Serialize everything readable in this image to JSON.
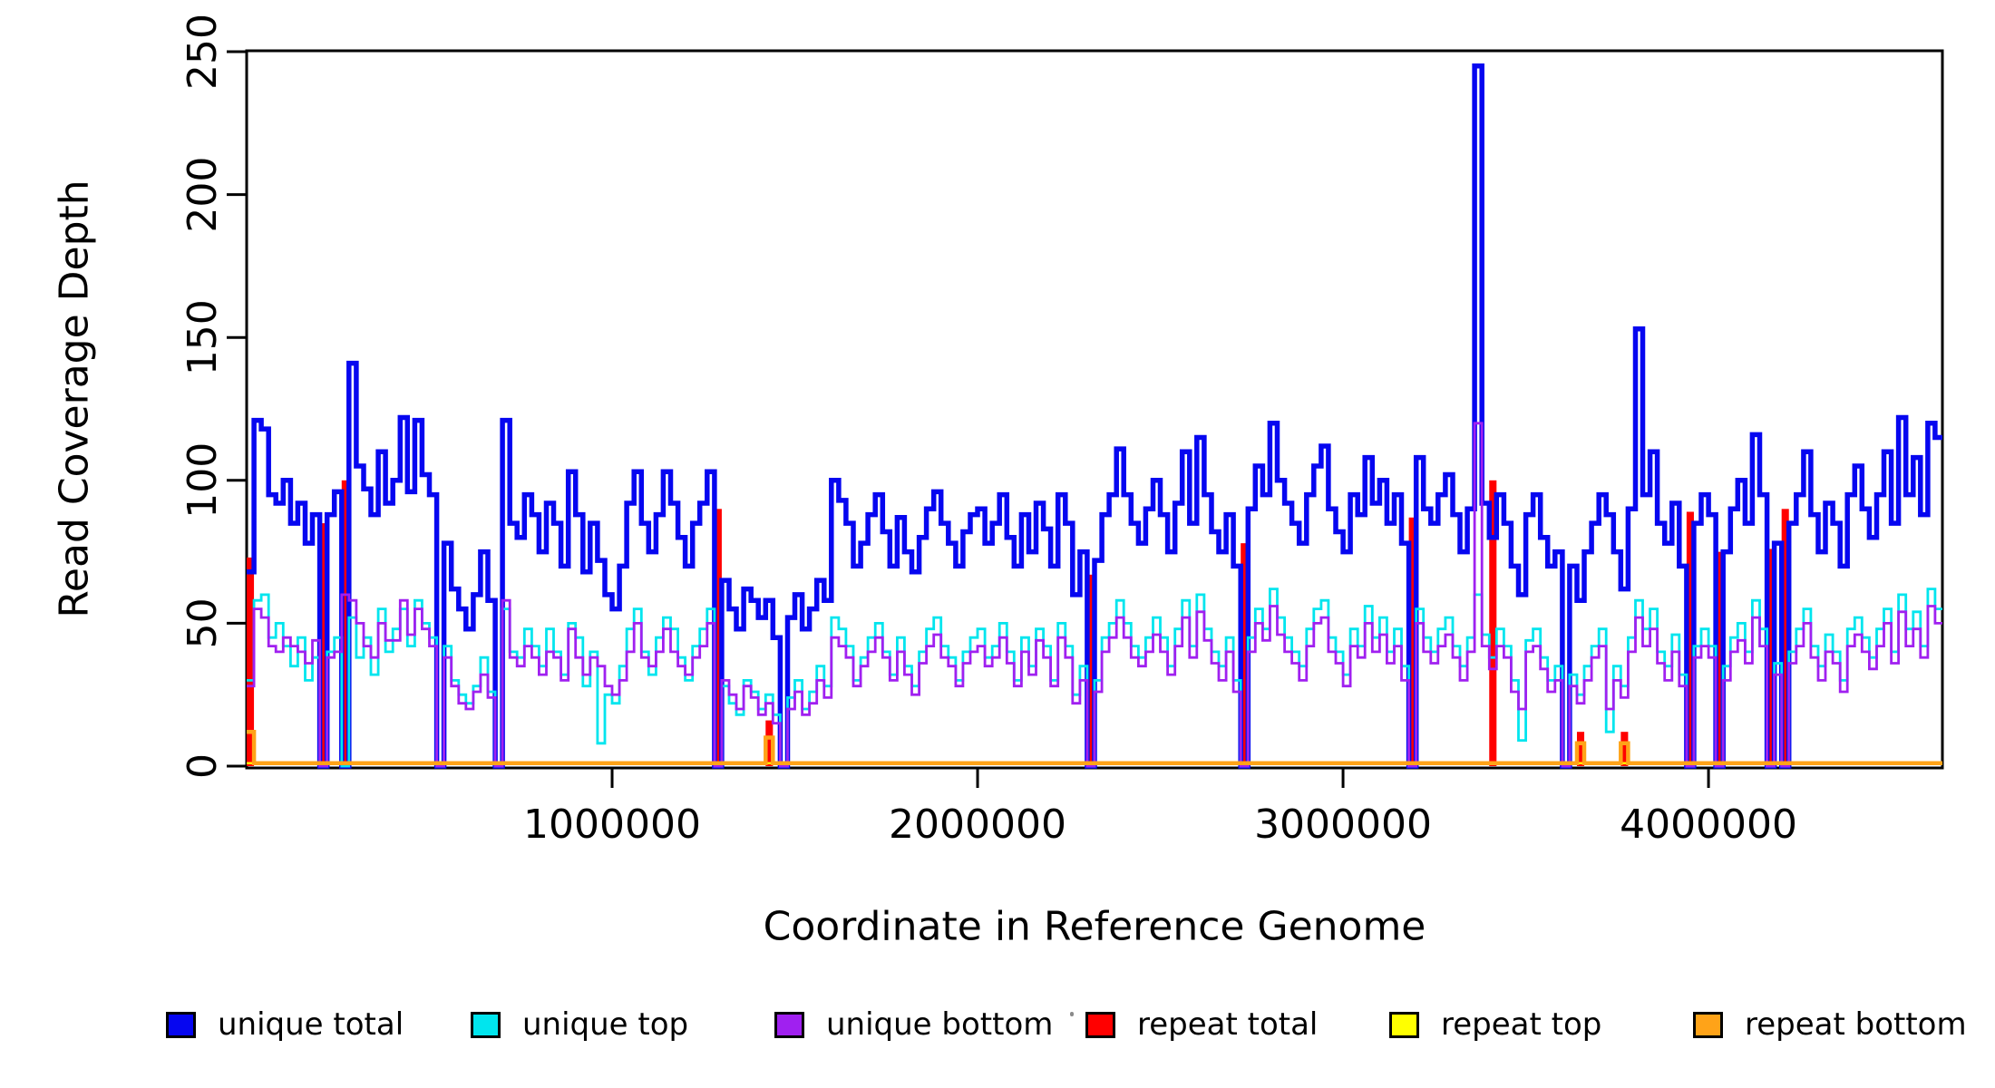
{
  "figure": {
    "background": "#ffffff"
  },
  "chart_data": {
    "type": "line",
    "subtype": "step-coverage-histogram",
    "title": "",
    "xlabel": "Coordinate in Reference Genome",
    "ylabel": "Read Coverage Depth",
    "xlim": [
      0,
      4640000
    ],
    "ylim": [
      0,
      250
    ],
    "xticks": [
      1000000,
      2000000,
      3000000,
      4000000
    ],
    "xtick_labels": [
      "1000000",
      "2000000",
      "3000000",
      "4000000"
    ],
    "yticks": [
      0,
      50,
      100,
      150,
      200,
      250
    ],
    "ytick_labels": [
      "0",
      "50",
      "100",
      "150",
      "200",
      "250"
    ],
    "grid": false,
    "frame_box": true,
    "legend_position": "bottom",
    "bin_size": 20000,
    "n_bins": 232,
    "draw_order": [
      3,
      0,
      1,
      2,
      4,
      5
    ],
    "series": [
      {
        "name": "unique total",
        "color": "#0606F0",
        "style": "step",
        "line_width": 5.5,
        "values": [
          68,
          121,
          118,
          95,
          92,
          100,
          85,
          92,
          78,
          88,
          0,
          88,
          96,
          0,
          141,
          105,
          97,
          88,
          110,
          92,
          100,
          122,
          96,
          121,
          102,
          95,
          0,
          78,
          62,
          55,
          48,
          60,
          75,
          58,
          0,
          121,
          85,
          80,
          95,
          88,
          75,
          92,
          85,
          70,
          103,
          88,
          68,
          85,
          72,
          60,
          55,
          70,
          92,
          103,
          85,
          75,
          88,
          103,
          92,
          80,
          70,
          85,
          92,
          103,
          0,
          65,
          55,
          48,
          62,
          58,
          52,
          58,
          45,
          0,
          52,
          60,
          48,
          55,
          65,
          58,
          100,
          93,
          85,
          70,
          78,
          88,
          95,
          82,
          70,
          87,
          75,
          68,
          80,
          90,
          96,
          85,
          78,
          70,
          82,
          88,
          90,
          78,
          85,
          95,
          80,
          70,
          88,
          75,
          92,
          83,
          70,
          95,
          85,
          60,
          75,
          0,
          72,
          88,
          95,
          111,
          95,
          85,
          78,
          90,
          100,
          88,
          75,
          92,
          110,
          85,
          115,
          95,
          82,
          75,
          88,
          70,
          0,
          90,
          105,
          95,
          120,
          100,
          92,
          85,
          78,
          95,
          105,
          112,
          90,
          82,
          75,
          95,
          88,
          108,
          92,
          100,
          85,
          95,
          78,
          0,
          108,
          90,
          85,
          95,
          102,
          88,
          75,
          90,
          245,
          92,
          80,
          95,
          85,
          70,
          60,
          88,
          95,
          80,
          70,
          75,
          0,
          70,
          58,
          75,
          85,
          95,
          88,
          75,
          62,
          90,
          153,
          95,
          110,
          85,
          78,
          92,
          70,
          0,
          85,
          95,
          88,
          0,
          75,
          90,
          100,
          85,
          116,
          95,
          0,
          78,
          0,
          85,
          95,
          110,
          88,
          75,
          92,
          85,
          70,
          95,
          105,
          90,
          80,
          95,
          110,
          85,
          122,
          95,
          108,
          88,
          120,
          115
        ]
      },
      {
        "name": "unique top",
        "color": "#00E5EE",
        "style": "step",
        "line_width": 2.8,
        "values": [
          30,
          58,
          60,
          45,
          50,
          42,
          35,
          45,
          30,
          38,
          0,
          40,
          45,
          0,
          52,
          38,
          45,
          32,
          55,
          40,
          48,
          55,
          42,
          58,
          50,
          45,
          0,
          42,
          30,
          25,
          22,
          28,
          38,
          26,
          0,
          55,
          40,
          38,
          48,
          42,
          35,
          48,
          40,
          32,
          50,
          45,
          28,
          40,
          8,
          25,
          22,
          35,
          48,
          55,
          40,
          32,
          45,
          52,
          48,
          38,
          30,
          42,
          48,
          55,
          0,
          28,
          22,
          18,
          30,
          26,
          20,
          25,
          18,
          0,
          24,
          30,
          20,
          26,
          35,
          28,
          52,
          48,
          42,
          30,
          38,
          45,
          50,
          40,
          32,
          45,
          35,
          28,
          40,
          48,
          52,
          42,
          38,
          30,
          40,
          45,
          48,
          38,
          42,
          50,
          40,
          30,
          45,
          35,
          48,
          42,
          30,
          50,
          42,
          25,
          35,
          0,
          30,
          45,
          50,
          58,
          50,
          42,
          38,
          45,
          52,
          45,
          35,
          48,
          58,
          42,
          60,
          48,
          40,
          35,
          45,
          30,
          0,
          45,
          55,
          48,
          62,
          52,
          45,
          40,
          35,
          48,
          55,
          58,
          45,
          40,
          32,
          48,
          42,
          56,
          45,
          52,
          40,
          48,
          35,
          0,
          55,
          45,
          40,
          48,
          52,
          42,
          35,
          45,
          60,
          46,
          38,
          48,
          42,
          30,
          9,
          44,
          48,
          38,
          30,
          35,
          0,
          32,
          25,
          35,
          42,
          48,
          12,
          35,
          28,
          45,
          58,
          48,
          55,
          40,
          35,
          46,
          32,
          0,
          42,
          48,
          42,
          0,
          35,
          45,
          50,
          40,
          58,
          48,
          0,
          36,
          0,
          40,
          48,
          55,
          42,
          35,
          46,
          40,
          30,
          48,
          52,
          45,
          38,
          48,
          55,
          40,
          60,
          48,
          54,
          42,
          62,
          55
        ]
      },
      {
        "name": "unique bottom",
        "color": "#A020F0",
        "style": "step",
        "line_width": 2.8,
        "values": [
          28,
          55,
          52,
          42,
          40,
          45,
          42,
          40,
          36,
          44,
          0,
          38,
          40,
          60,
          58,
          50,
          42,
          38,
          50,
          44,
          44,
          58,
          46,
          55,
          48,
          42,
          0,
          38,
          28,
          22,
          20,
          26,
          32,
          24,
          0,
          58,
          38,
          35,
          42,
          38,
          32,
          40,
          38,
          30,
          48,
          38,
          32,
          38,
          35,
          28,
          25,
          30,
          40,
          50,
          38,
          35,
          40,
          48,
          40,
          35,
          32,
          38,
          42,
          50,
          0,
          30,
          25,
          20,
          28,
          24,
          18,
          22,
          15,
          0,
          20,
          26,
          18,
          22,
          30,
          24,
          45,
          42,
          38,
          28,
          35,
          40,
          45,
          38,
          30,
          40,
          32,
          25,
          36,
          42,
          46,
          38,
          35,
          28,
          36,
          40,
          42,
          35,
          38,
          45,
          36,
          28,
          40,
          32,
          44,
          38,
          28,
          45,
          38,
          22,
          30,
          0,
          26,
          40,
          45,
          52,
          45,
          38,
          35,
          40,
          46,
          40,
          32,
          42,
          52,
          38,
          54,
          44,
          36,
          30,
          40,
          26,
          0,
          40,
          50,
          44,
          56,
          46,
          40,
          36,
          30,
          42,
          50,
          52,
          40,
          36,
          28,
          42,
          38,
          50,
          40,
          46,
          36,
          42,
          30,
          0,
          50,
          40,
          36,
          42,
          46,
          38,
          30,
          40,
          120,
          42,
          34,
          42,
          38,
          26,
          20,
          40,
          42,
          34,
          26,
          30,
          0,
          28,
          22,
          30,
          38,
          42,
          20,
          30,
          24,
          40,
          52,
          42,
          48,
          36,
          30,
          40,
          28,
          0,
          38,
          42,
          38,
          0,
          30,
          40,
          44,
          36,
          52,
          42,
          0,
          32,
          0,
          36,
          42,
          50,
          38,
          30,
          40,
          36,
          26,
          42,
          46,
          40,
          34,
          42,
          50,
          36,
          54,
          42,
          48,
          38,
          56,
          50
        ]
      },
      {
        "name": "repeat total",
        "color": "#FF0000",
        "style": "bars",
        "line_width": 5,
        "default": 0,
        "overrides": {
          "0": 73,
          "10": 85,
          "13": 100,
          "64": 90,
          "71": 16,
          "115": 67,
          "136": 78,
          "159": 87,
          "170": 100,
          "182": 12,
          "188": 12,
          "197": 89,
          "201": 75,
          "208": 76,
          "210": 90
        }
      },
      {
        "name": "repeat top",
        "color": "#FFFF00",
        "style": "step",
        "line_width": 2.5,
        "default": 1,
        "overrides": {}
      },
      {
        "name": "repeat bottom",
        "color": "#FFA318",
        "style": "step",
        "line_width": 4.5,
        "default": 1,
        "overrides": {
          "0": 12,
          "71": 10,
          "182": 8,
          "188": 8
        }
      }
    ]
  },
  "artifacts": {
    "stray_dot_x": 1180,
    "stray_dot_y": 1116
  }
}
